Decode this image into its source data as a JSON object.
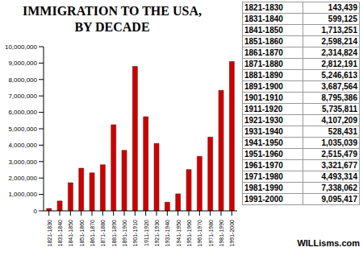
{
  "chart_data": {
    "type": "bar",
    "title": "IMMIGRATION TO THE USA,\nBY DECADE",
    "source": "WILLisms.com",
    "categories": [
      "1821-1830",
      "1831-1840",
      "1841-1850",
      "1851-1860",
      "1861-1870",
      "1871-1880",
      "1881-1890",
      "1891-1900",
      "1901-1910",
      "1911-1920",
      "1921-1930",
      "1931-1940",
      "1941-1950",
      "1951-1960",
      "1961-1970",
      "1971-1980",
      "1981-1990",
      "1991-2000"
    ],
    "values": [
      143439,
      599125,
      1713251,
      2598214,
      2314824,
      2812191,
      5246613,
      3687564,
      8795386,
      5735811,
      4107209,
      528431,
      1035039,
      2515479,
      3321677,
      4493314,
      7338062,
      9095417
    ],
    "value_labels": [
      "143,439",
      "599,125",
      "1,713,251",
      "2,598,214",
      "2,314,824",
      "2,812,191",
      "5,246,613",
      "3,687,564",
      "8,795,386",
      "5,735,811",
      "4,107,209",
      "528,431",
      "1,035,039",
      "2,515,479",
      "3,321,677",
      "4,493,314",
      "7,338,062",
      "9,095,417"
    ],
    "color": "#cc0000",
    "ylim": [
      0,
      10000000
    ],
    "yticks": [
      0,
      {
        "value": 1000000,
        "label": "1,000,000"
      },
      {
        "value": 2000000,
        "label": "2,000,000"
      },
      {
        "value": 3000000,
        "label": "3,000,000"
      },
      {
        "value": 4000000,
        "label": "4,000,000"
      },
      {
        "value": 5000000,
        "label": "5,000,000"
      },
      {
        "value": 6000000,
        "label": "6,000,000"
      },
      {
        "value": 7000000,
        "label": "7,000,000"
      },
      {
        "value": 8000000,
        "label": "8,000,000"
      },
      {
        "value": 9000000,
        "label": "9,000,000"
      },
      {
        "value": 10000000,
        "label": "10,000,000"
      }
    ],
    "grid": false
  }
}
